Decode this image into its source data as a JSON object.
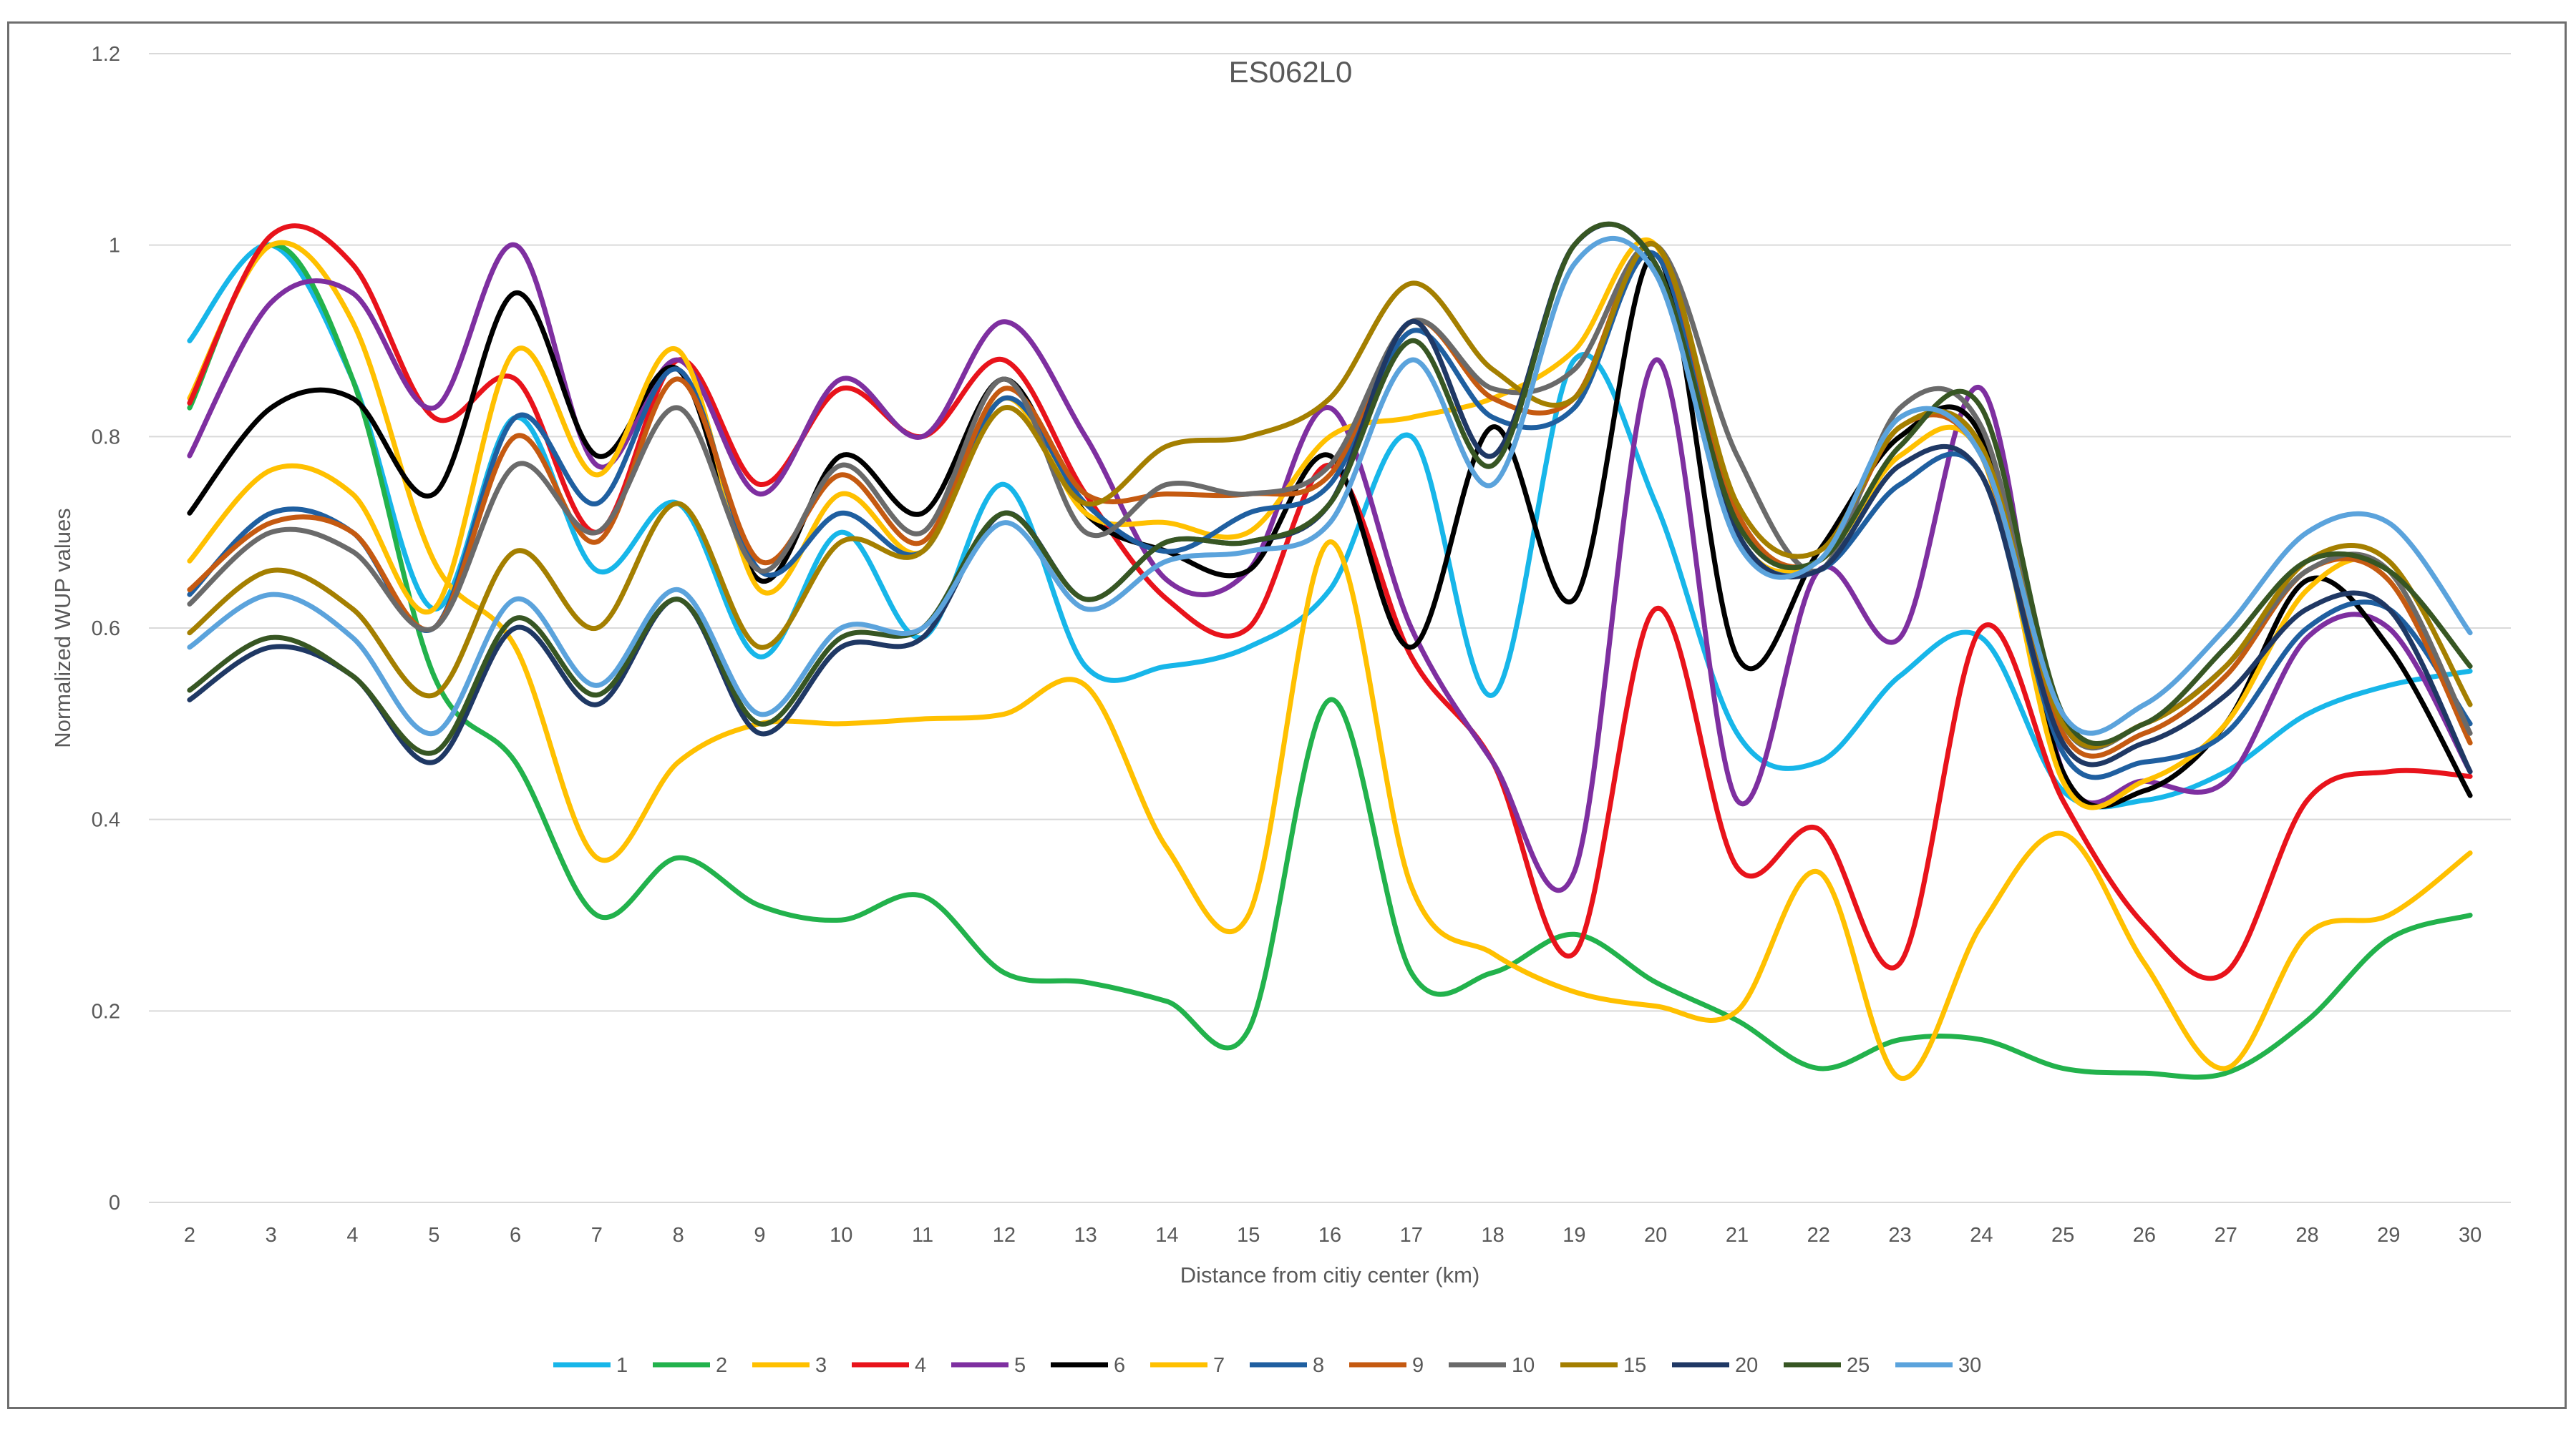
{
  "chart_data": {
    "type": "line",
    "title": "ES062L0",
    "xlabel": "Distance from citiy center (km)",
    "ylabel": "Normalized WUP values",
    "ylim": [
      0,
      1.2
    ],
    "yticks": [
      "0",
      "0.2",
      "0.4",
      "0.6",
      "0.8",
      "1",
      "1.2"
    ],
    "grid": true,
    "legend_position": "bottom",
    "categories": [
      "2",
      "3",
      "4",
      "5",
      "6",
      "7",
      "8",
      "9",
      "10",
      "11",
      "12",
      "13",
      "14",
      "15",
      "16",
      "17",
      "18",
      "19",
      "20",
      "21",
      "22",
      "23",
      "24",
      "25",
      "26",
      "27",
      "28",
      "29",
      "30"
    ],
    "series": [
      {
        "name": "1",
        "color": "#17b6e9",
        "values": [
          0.9,
          1.0,
          0.86,
          0.62,
          0.82,
          0.66,
          0.73,
          0.57,
          0.7,
          0.59,
          0.75,
          0.56,
          0.56,
          0.58,
          0.64,
          0.8,
          0.53,
          0.88,
          0.73,
          0.49,
          0.46,
          0.55,
          0.59,
          0.43,
          0.42,
          0.45,
          0.51,
          0.54,
          0.555
        ]
      },
      {
        "name": "2",
        "color": "#22b24c",
        "values": [
          0.83,
          1.0,
          0.86,
          0.55,
          0.46,
          0.3,
          0.36,
          0.31,
          0.295,
          0.32,
          0.24,
          0.23,
          0.21,
          0.18,
          0.525,
          0.24,
          0.24,
          0.28,
          0.23,
          0.19,
          0.14,
          0.17,
          0.17,
          0.14,
          0.135,
          0.135,
          0.19,
          0.275,
          0.3
        ]
      },
      {
        "name": "3",
        "color": "#ffc000",
        "values": [
          0.84,
          1.0,
          0.92,
          0.67,
          0.58,
          0.36,
          0.46,
          0.5,
          0.5,
          0.505,
          0.51,
          0.54,
          0.37,
          0.3,
          0.69,
          0.33,
          0.26,
          0.22,
          0.205,
          0.2,
          0.345,
          0.13,
          0.29,
          0.385,
          0.25,
          0.14,
          0.28,
          0.3,
          0.365
        ]
      },
      {
        "name": "4",
        "color": "#e8131b",
        "values": [
          0.835,
          1.01,
          0.98,
          0.82,
          0.86,
          0.7,
          0.88,
          0.75,
          0.85,
          0.8,
          0.88,
          0.74,
          0.63,
          0.6,
          0.77,
          0.57,
          0.46,
          0.26,
          0.62,
          0.35,
          0.39,
          0.25,
          0.6,
          0.42,
          0.29,
          0.24,
          0.42,
          0.45,
          0.445
        ]
      },
      {
        "name": "5",
        "color": "#7e2fa0",
        "values": [
          0.78,
          0.94,
          0.95,
          0.83,
          1.0,
          0.77,
          0.88,
          0.74,
          0.86,
          0.8,
          0.92,
          0.8,
          0.65,
          0.66,
          0.83,
          0.6,
          0.46,
          0.345,
          0.88,
          0.42,
          0.66,
          0.59,
          0.85,
          0.45,
          0.44,
          0.44,
          0.59,
          0.6,
          0.45
        ]
      },
      {
        "name": "6",
        "color": "#000000",
        "values": [
          0.72,
          0.83,
          0.84,
          0.74,
          0.95,
          0.78,
          0.87,
          0.65,
          0.78,
          0.72,
          0.86,
          0.72,
          0.68,
          0.66,
          0.78,
          0.58,
          0.81,
          0.63,
          0.99,
          0.57,
          0.68,
          0.8,
          0.8,
          0.45,
          0.43,
          0.5,
          0.65,
          0.58,
          0.425
        ]
      },
      {
        "name": "7",
        "color": "#ffc000",
        "values": [
          0.67,
          0.765,
          0.74,
          0.62,
          0.89,
          0.76,
          0.89,
          0.64,
          0.74,
          0.68,
          0.84,
          0.72,
          0.71,
          0.7,
          0.8,
          0.82,
          0.84,
          0.89,
          1.0,
          0.7,
          0.67,
          0.78,
          0.78,
          0.44,
          0.44,
          0.5,
          0.64,
          0.66,
          0.48
        ]
      },
      {
        "name": "8",
        "color": "#1f5fa0",
        "values": [
          0.635,
          0.72,
          0.7,
          0.6,
          0.82,
          0.73,
          0.87,
          0.66,
          0.72,
          0.68,
          0.84,
          0.73,
          0.68,
          0.72,
          0.75,
          0.91,
          0.82,
          0.83,
          0.99,
          0.7,
          0.66,
          0.75,
          0.76,
          0.47,
          0.46,
          0.49,
          0.6,
          0.62,
          0.5
        ]
      },
      {
        "name": "9",
        "color": "#c55a11",
        "values": [
          0.64,
          0.71,
          0.7,
          0.6,
          0.8,
          0.69,
          0.86,
          0.67,
          0.76,
          0.69,
          0.85,
          0.74,
          0.74,
          0.74,
          0.76,
          0.92,
          0.84,
          0.84,
          1.0,
          0.72,
          0.67,
          0.81,
          0.78,
          0.49,
          0.49,
          0.55,
          0.66,
          0.65,
          0.48
        ]
      },
      {
        "name": "10",
        "color": "#6a6a6a",
        "values": [
          0.625,
          0.7,
          0.68,
          0.6,
          0.77,
          0.7,
          0.83,
          0.66,
          0.77,
          0.7,
          0.86,
          0.7,
          0.75,
          0.74,
          0.77,
          0.92,
          0.85,
          0.87,
          1.0,
          0.78,
          0.66,
          0.83,
          0.81,
          0.5,
          0.5,
          0.56,
          0.66,
          0.66,
          0.49
        ]
      },
      {
        "name": "15",
        "color": "#a47f00",
        "values": [
          0.595,
          0.66,
          0.62,
          0.53,
          0.68,
          0.6,
          0.73,
          0.58,
          0.69,
          0.68,
          0.83,
          0.73,
          0.79,
          0.8,
          0.84,
          0.96,
          0.87,
          0.84,
          1.0,
          0.73,
          0.68,
          0.81,
          0.79,
          0.5,
          0.5,
          0.56,
          0.67,
          0.67,
          0.52
        ]
      },
      {
        "name": "20",
        "color": "#1f3864",
        "values": [
          0.525,
          0.58,
          0.55,
          0.46,
          0.6,
          0.52,
          0.63,
          0.49,
          0.58,
          0.59,
          0.72,
          0.63,
          0.69,
          0.69,
          0.73,
          0.92,
          0.78,
          1.0,
          0.98,
          0.7,
          0.66,
          0.77,
          0.76,
          0.48,
          0.48,
          0.53,
          0.62,
          0.62,
          0.45
        ]
      },
      {
        "name": "25",
        "color": "#375623",
        "values": [
          0.535,
          0.59,
          0.55,
          0.47,
          0.61,
          0.53,
          0.63,
          0.5,
          0.59,
          0.6,
          0.72,
          0.63,
          0.69,
          0.69,
          0.73,
          0.9,
          0.77,
          1.0,
          0.98,
          0.71,
          0.67,
          0.79,
          0.83,
          0.51,
          0.5,
          0.58,
          0.67,
          0.66,
          0.56
        ]
      },
      {
        "name": "30",
        "color": "#5ba3dc",
        "values": [
          0.58,
          0.635,
          0.59,
          0.49,
          0.63,
          0.54,
          0.64,
          0.51,
          0.6,
          0.6,
          0.71,
          0.62,
          0.67,
          0.68,
          0.71,
          0.88,
          0.75,
          0.98,
          0.97,
          0.69,
          0.67,
          0.82,
          0.78,
          0.51,
          0.52,
          0.6,
          0.7,
          0.71,
          0.595
        ]
      }
    ]
  }
}
